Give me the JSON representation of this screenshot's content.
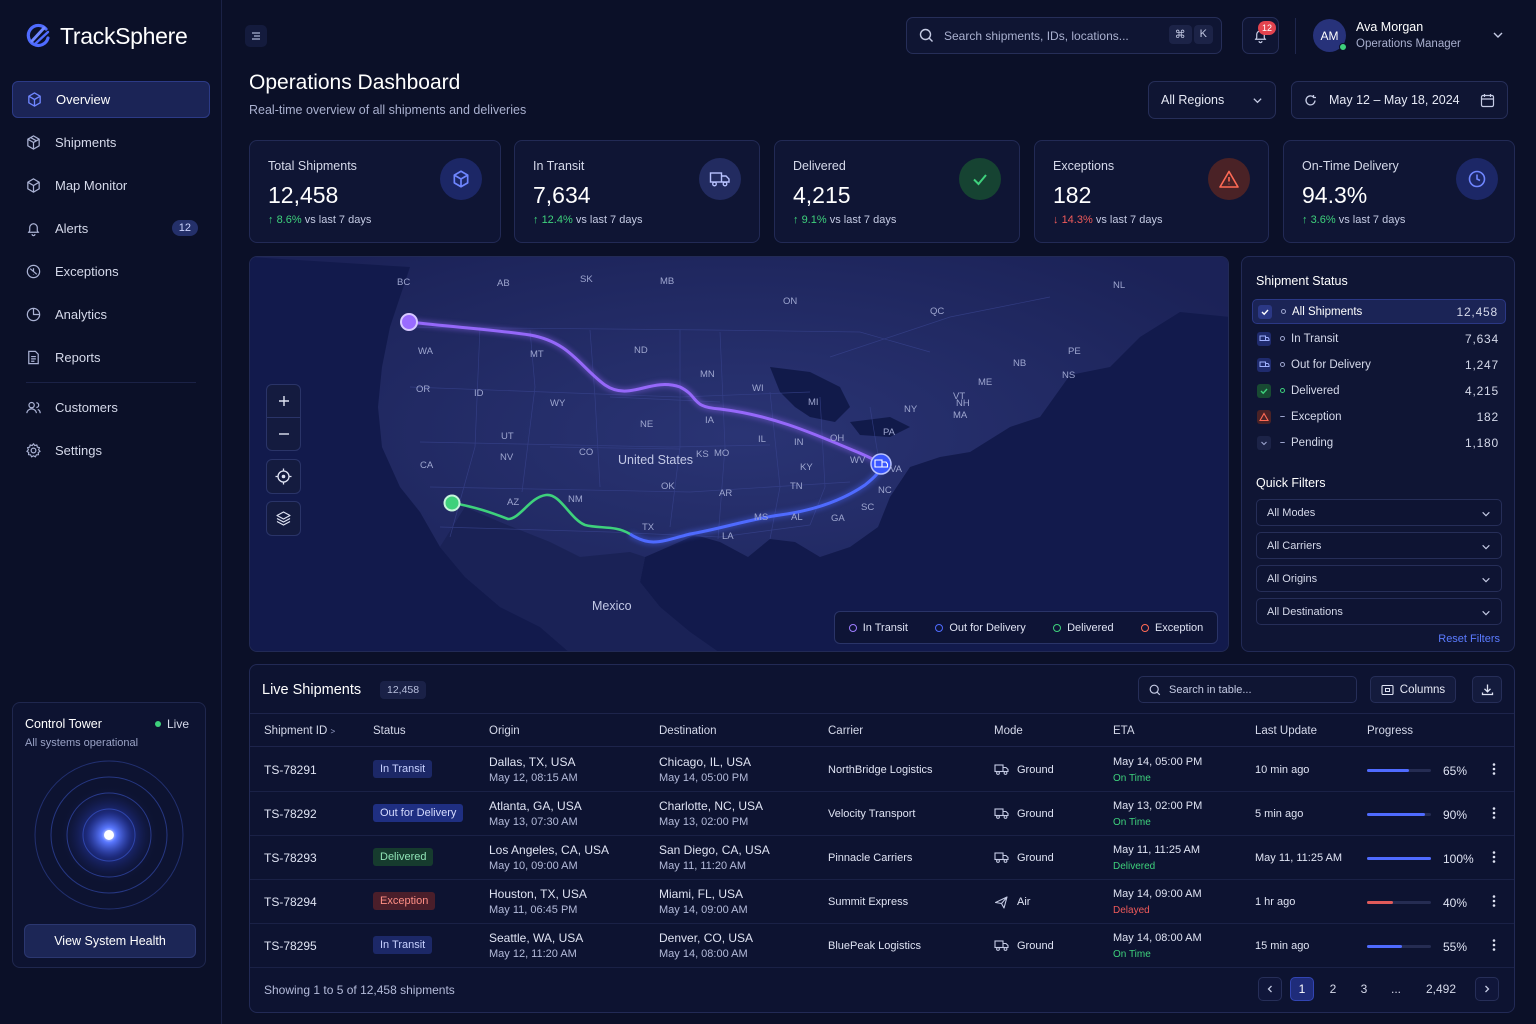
{
  "app": {
    "name": "TrackSphere"
  },
  "sidebar": {
    "items": [
      {
        "label": "Overview",
        "icon": "cube-icon"
      },
      {
        "label": "Shipments",
        "icon": "package-icon"
      },
      {
        "label": "Map Monitor",
        "icon": "map-icon"
      },
      {
        "label": "Alerts",
        "icon": "bell-icon",
        "badge": "12"
      },
      {
        "label": "Exceptions",
        "icon": "alert-circle-icon"
      },
      {
        "label": "Analytics",
        "icon": "analytics-icon"
      },
      {
        "label": "Reports",
        "icon": "report-icon"
      },
      {
        "label": "Customers",
        "icon": "users-icon"
      },
      {
        "label": "Settings",
        "icon": "gear-icon"
      }
    ],
    "control_tower": {
      "title": "Control Tower",
      "status": "Live",
      "subtitle": "All systems operational",
      "button": "View System Health"
    }
  },
  "header": {
    "search_placeholder": "Search shipments, IDs, locations...",
    "kbd_cmd": "⌘",
    "kbd_key": "K",
    "notifications": "12",
    "user": {
      "initials": "AM",
      "name": "Ava Morgan",
      "role": "Operations Manager"
    }
  },
  "page": {
    "title": "Operations Dashboard",
    "subtitle": "Real-time overview of all shipments and deliveries",
    "region": "All Regions",
    "date_range": "May 12 – May 18, 2024"
  },
  "kpis": [
    {
      "label": "Total Shipments",
      "value": "12,458",
      "change": "8.6%",
      "direction": "up",
      "suffix": "vs last 7 days",
      "icon": "cube-icon",
      "color": "#4f6bff"
    },
    {
      "label": "In Transit",
      "value": "7,634",
      "change": "12.4%",
      "direction": "up",
      "suffix": "vs last 7 days",
      "icon": "truck-icon",
      "color": "#8fa0ff"
    },
    {
      "label": "Delivered",
      "value": "4,215",
      "change": "9.1%",
      "direction": "up",
      "suffix": "vs last 7 days",
      "icon": "check-icon",
      "color": "#3ed17c"
    },
    {
      "label": "Exceptions",
      "value": "182",
      "change": "14.3%",
      "direction": "down",
      "suffix": "vs last 7 days",
      "icon": "warning-icon",
      "color": "#ff6a55"
    },
    {
      "label": "On-Time Delivery",
      "value": "94.3%",
      "change": "3.6%",
      "direction": "up",
      "suffix": "vs last 7 days",
      "icon": "clock-icon",
      "color": "#4f6bff"
    }
  ],
  "map": {
    "country_labels": [
      "United States",
      "Mexico"
    ],
    "state_labels": [
      "BC",
      "AB",
      "SK",
      "MB",
      "ON",
      "QC",
      "NL",
      "WA",
      "OR",
      "ID",
      "MT",
      "WY",
      "ND",
      "MN",
      "WI",
      "MI",
      "NY",
      "NE",
      "IA",
      "IL",
      "IN",
      "OH",
      "PA",
      "UT",
      "CO",
      "KS",
      "MO",
      "KY",
      "WV",
      "VA",
      "CA",
      "NV",
      "AZ",
      "NM",
      "OK",
      "AR",
      "TN",
      "NC",
      "SC",
      "GA",
      "AL",
      "MS",
      "TX",
      "LA",
      "NB",
      "NS",
      "PE",
      "ME",
      "VT",
      "NH",
      "MA"
    ],
    "legend": [
      "In Transit",
      "Out for Delivery",
      "Delivered",
      "Exception"
    ],
    "legend_colors": [
      "#9d7cff",
      "#4f6bff",
      "#3ed17c",
      "#ff6a55"
    ]
  },
  "shipment_status": {
    "title": "Shipment Status",
    "rows": [
      {
        "label": "All Shipments",
        "count": "12,458",
        "icon": "check-square-icon"
      },
      {
        "label": "In Transit",
        "count": "7,634",
        "icon": "truck-icon"
      },
      {
        "label": "Out for Delivery",
        "count": "1,247",
        "icon": "truck-icon"
      },
      {
        "label": "Delivered",
        "count": "4,215",
        "icon": "check-icon"
      },
      {
        "label": "Exception",
        "count": "182",
        "icon": "warning-icon"
      },
      {
        "label": "Pending",
        "count": "1,180",
        "icon": "chevron-down-icon"
      }
    ]
  },
  "quick_filters": {
    "title": "Quick Filters",
    "selects": [
      "All Modes",
      "All Carriers",
      "All Origins",
      "All Destinations"
    ],
    "reset": "Reset Filters"
  },
  "table": {
    "title": "Live Shipments",
    "count": "12,458",
    "search_placeholder": "Search in table...",
    "columns_button": "Columns",
    "headers": [
      "Shipment ID",
      "Status",
      "Origin",
      "Destination",
      "Carrier",
      "Mode",
      "ETA",
      "Last Update",
      "Progress"
    ],
    "rows": [
      {
        "id": "TS-78291",
        "status": "In Transit",
        "status_kind": "transit",
        "origin": "Dallas, TX, USA",
        "origin_time": "May 12, 08:15 AM",
        "dest": "Chicago, IL, USA",
        "dest_time": "May 14, 05:00 PM",
        "carrier": "NorthBridge Logistics",
        "mode": "Ground",
        "mode_icon": "truck-icon",
        "eta": "May 14, 05:00 PM",
        "eta_status": "On Time",
        "eta_kind": "ok",
        "last_update": "10 min ago",
        "progress": 65,
        "progress_label": "65%"
      },
      {
        "id": "TS-78292",
        "status": "Out for Delivery",
        "status_kind": "ofd",
        "origin": "Atlanta, GA, USA",
        "origin_time": "May 13, 07:30 AM",
        "dest": "Charlotte, NC, USA",
        "dest_time": "May 13, 02:00 PM",
        "carrier": "Velocity Transport",
        "mode": "Ground",
        "mode_icon": "truck-icon",
        "eta": "May 13, 02:00 PM",
        "eta_status": "On Time",
        "eta_kind": "ok",
        "last_update": "5 min ago",
        "progress": 90,
        "progress_label": "90%"
      },
      {
        "id": "TS-78293",
        "status": "Delivered",
        "status_kind": "delivered",
        "origin": "Los Angeles, CA, USA",
        "origin_time": "May 10, 09:00 AM",
        "dest": "San Diego, CA, USA",
        "dest_time": "May 11, 11:20 AM",
        "carrier": "Pinnacle Carriers",
        "mode": "Ground",
        "mode_icon": "truck-icon",
        "eta": "May 11, 11:25 AM",
        "eta_status": "Delivered",
        "eta_kind": "ok",
        "last_update": "May 11, 11:25 AM",
        "progress": 100,
        "progress_label": "100%"
      },
      {
        "id": "TS-78294",
        "status": "Exception",
        "status_kind": "exception",
        "origin": "Houston, TX, USA",
        "origin_time": "May 11, 06:45 PM",
        "dest": "Miami, FL, USA",
        "dest_time": "May 14, 09:00 AM",
        "carrier": "Summit Express",
        "mode": "Air",
        "mode_icon": "plane-icon",
        "eta": "May 14, 09:00 AM",
        "eta_status": "Delayed",
        "eta_kind": "bad",
        "last_update": "1 hr ago",
        "progress": 40,
        "progress_label": "40%"
      },
      {
        "id": "TS-78295",
        "status": "In Transit",
        "status_kind": "transit",
        "origin": "Seattle, WA, USA",
        "origin_time": "May 12, 11:20 AM",
        "dest": "Denver, CO, USA",
        "dest_time": "May 14, 08:00 AM",
        "carrier": "BluePeak Logistics",
        "mode": "Ground",
        "mode_icon": "truck-icon",
        "eta": "May 14, 08:00 AM",
        "eta_status": "On Time",
        "eta_kind": "ok",
        "last_update": "15 min ago",
        "progress": 55,
        "progress_label": "55%"
      }
    ],
    "footer": "Showing 1 to 5 of 12,458 shipments",
    "pages": [
      "1",
      "2",
      "3",
      "...",
      "2,492"
    ]
  }
}
